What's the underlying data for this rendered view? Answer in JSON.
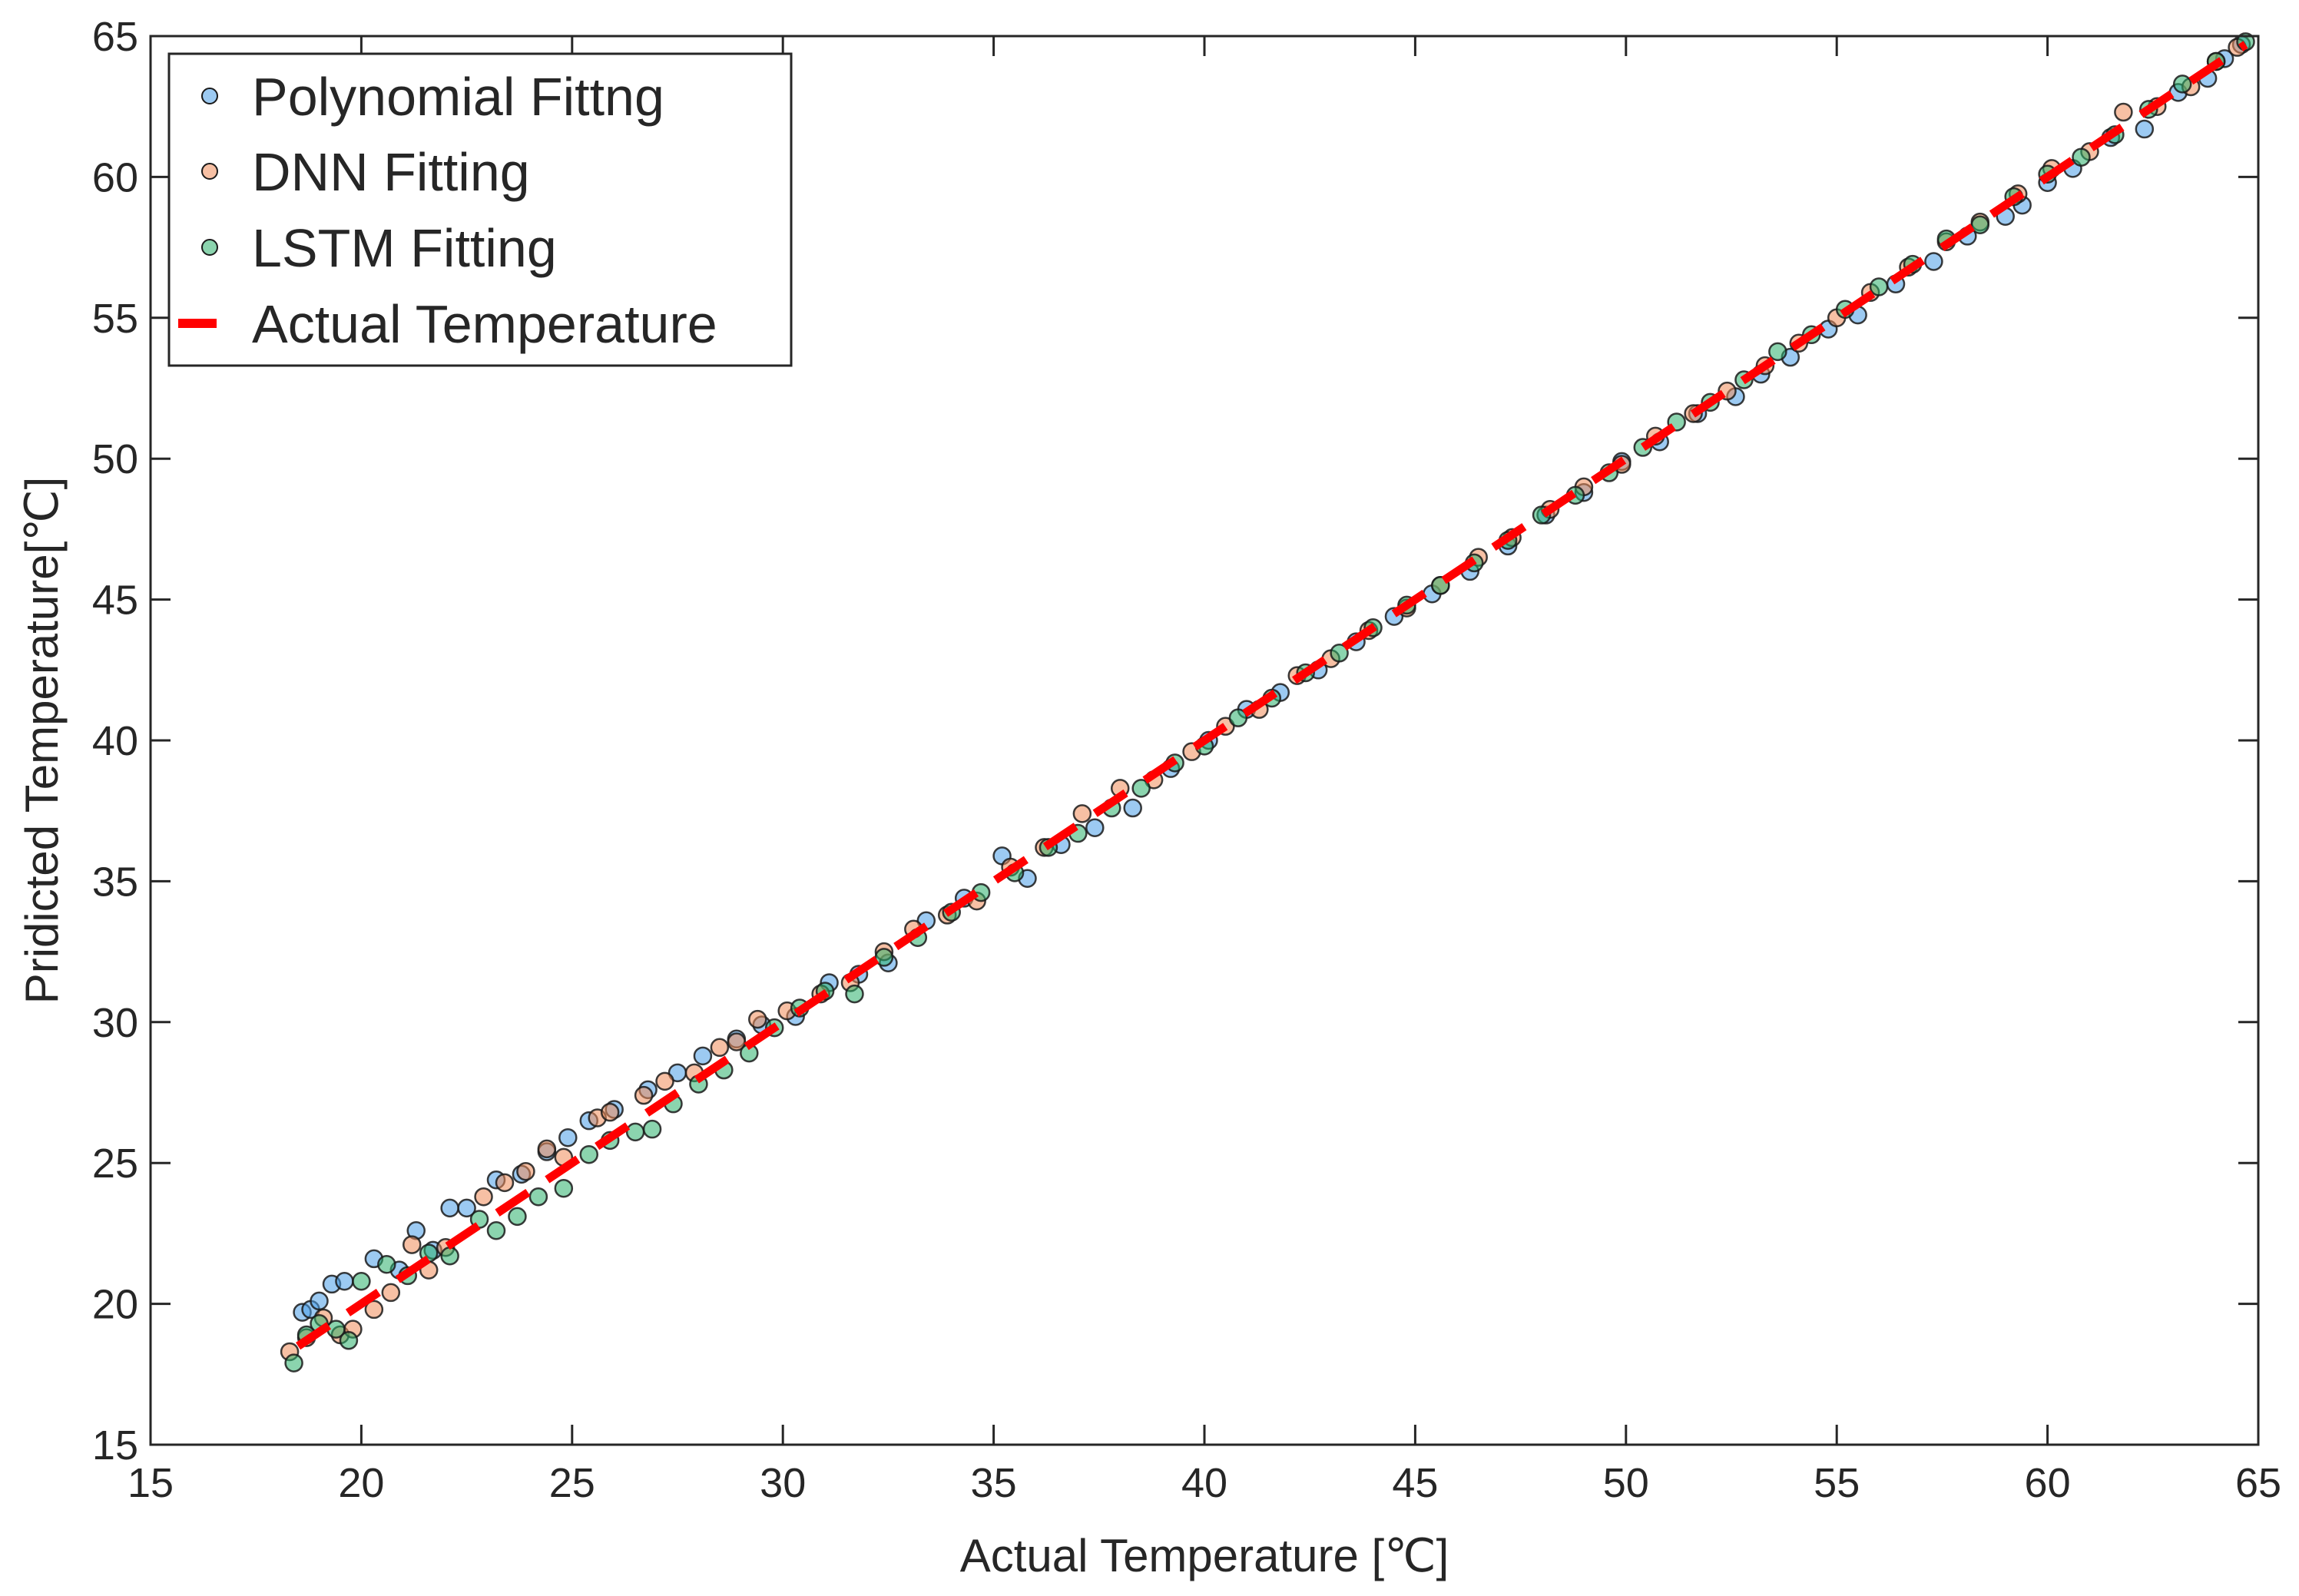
{
  "chart_data": {
    "type": "scatter",
    "title": "",
    "xlabel": "Actual Temperature [℃]",
    "ylabel": "Pridicted Temperature[℃]",
    "xlim": [
      15,
      65
    ],
    "ylim": [
      15,
      65
    ],
    "xticks": [
      15,
      20,
      25,
      30,
      35,
      40,
      45,
      50,
      55,
      60,
      65
    ],
    "yticks": [
      15,
      20,
      25,
      30,
      35,
      40,
      45,
      50,
      55,
      60,
      65
    ],
    "grid": false,
    "legend_position": "top-left",
    "series": [
      {
        "name": "Polynomial Fittng",
        "kind": "scatter",
        "color": "#4a9fe8",
        "x": [
          18.6,
          18.8,
          19.0,
          19.3,
          19.6,
          20.3,
          20.9,
          21.3,
          21.7,
          22.1,
          22.5,
          23.2,
          23.8,
          24.4,
          24.9,
          25.4,
          26.0,
          26.8,
          27.5,
          28.1,
          28.9,
          29.5,
          30.3,
          31.1,
          31.8,
          32.5,
          33.4,
          34.3,
          35.2,
          35.8,
          36.6,
          37.4,
          38.3,
          39.2,
          40.1,
          41.0,
          41.8,
          42.7,
          43.6,
          44.5,
          45.4,
          46.3,
          47.2,
          48.1,
          49.0,
          49.9,
          50.8,
          51.7,
          52.6,
          53.2,
          53.9,
          54.8,
          55.5,
          56.4,
          57.3,
          58.1,
          59.0,
          59.4,
          60.0,
          60.6,
          61.5,
          62.3,
          63.1,
          63.8,
          64.2,
          64.6
        ],
        "y": [
          19.7,
          19.8,
          20.1,
          20.7,
          20.8,
          21.6,
          21.2,
          22.6,
          21.9,
          23.4,
          23.4,
          24.4,
          24.6,
          25.4,
          25.9,
          26.5,
          26.9,
          27.6,
          28.2,
          28.8,
          29.4,
          29.9,
          30.2,
          31.4,
          31.7,
          32.1,
          33.6,
          34.4,
          35.9,
          35.1,
          36.3,
          36.9,
          37.6,
          39.0,
          40.0,
          41.1,
          41.7,
          42.5,
          43.5,
          44.4,
          45.2,
          46.0,
          46.9,
          48.0,
          48.8,
          49.9,
          50.6,
          51.6,
          52.2,
          53.0,
          53.6,
          54.6,
          55.1,
          56.2,
          57.0,
          57.9,
          58.6,
          59.0,
          59.8,
          60.3,
          61.4,
          61.7,
          63.0,
          63.5,
          64.2,
          64.7
        ]
      },
      {
        "name": "DNN Fitting",
        "kind": "scatter",
        "color": "#f08c5a",
        "x": [
          18.3,
          18.7,
          19.1,
          19.5,
          19.8,
          20.3,
          20.7,
          21.2,
          21.6,
          22.0,
          22.9,
          23.4,
          23.9,
          24.4,
          24.8,
          25.6,
          25.9,
          26.7,
          27.2,
          27.9,
          28.5,
          28.9,
          29.4,
          30.1,
          30.9,
          31.6,
          32.4,
          33.1,
          33.9,
          34.6,
          35.4,
          36.2,
          37.1,
          38.0,
          38.8,
          39.7,
          40.5,
          41.3,
          42.2,
          43.0,
          43.9,
          44.8,
          45.6,
          46.5,
          47.3,
          48.2,
          49.0,
          49.9,
          50.7,
          51.6,
          52.4,
          53.3,
          54.1,
          55.0,
          55.8,
          56.7,
          57.6,
          58.4,
          59.3,
          60.1,
          61.0,
          61.8,
          62.6,
          63.4,
          64.0,
          64.5
        ],
        "y": [
          18.3,
          18.8,
          19.5,
          18.9,
          19.1,
          19.8,
          20.4,
          22.1,
          21.2,
          22.0,
          23.8,
          24.3,
          24.7,
          25.5,
          25.2,
          26.6,
          26.8,
          27.4,
          27.9,
          28.2,
          29.1,
          29.3,
          30.1,
          30.4,
          31.0,
          31.4,
          32.5,
          33.3,
          33.8,
          34.3,
          35.5,
          36.2,
          37.4,
          38.3,
          38.6,
          39.6,
          40.5,
          41.1,
          42.3,
          42.9,
          43.9,
          44.7,
          45.5,
          46.5,
          47.2,
          48.2,
          49.0,
          49.8,
          50.8,
          51.6,
          52.4,
          53.3,
          54.1,
          55.0,
          55.9,
          56.8,
          57.7,
          58.4,
          59.4,
          60.3,
          60.9,
          62.3,
          62.5,
          63.2,
          64.1,
          64.6
        ]
      },
      {
        "name": "LSTM Fitting",
        "kind": "scatter",
        "color": "#2bb06c",
        "x": [
          18.4,
          18.7,
          19.0,
          19.4,
          19.7,
          20.0,
          20.6,
          21.1,
          21.6,
          22.1,
          22.8,
          23.2,
          23.7,
          24.2,
          24.8,
          25.4,
          25.9,
          26.5,
          26.9,
          27.4,
          28.0,
          28.6,
          29.2,
          29.8,
          30.4,
          31.0,
          31.7,
          32.4,
          33.2,
          34.0,
          34.7,
          35.5,
          36.3,
          37.0,
          37.8,
          38.5,
          39.3,
          40.0,
          40.8,
          41.6,
          42.4,
          43.2,
          44.0,
          44.8,
          45.6,
          46.4,
          47.2,
          48.0,
          48.8,
          49.6,
          50.4,
          51.2,
          52.0,
          52.8,
          53.6,
          54.4,
          55.2,
          56.0,
          56.8,
          57.6,
          58.4,
          59.2,
          60.0,
          60.8,
          61.6,
          62.4,
          63.2,
          64.0,
          64.7
        ],
        "y": [
          17.9,
          18.9,
          19.3,
          19.1,
          18.7,
          20.8,
          21.4,
          21.0,
          21.8,
          21.7,
          23.0,
          22.6,
          23.1,
          23.8,
          24.1,
          25.3,
          25.8,
          26.1,
          26.2,
          27.1,
          27.8,
          28.3,
          28.9,
          29.8,
          30.5,
          31.1,
          31.0,
          32.3,
          33.0,
          33.9,
          34.6,
          35.3,
          36.2,
          36.7,
          37.6,
          38.3,
          39.2,
          39.8,
          40.8,
          41.5,
          42.4,
          43.1,
          44.0,
          44.8,
          45.5,
          46.3,
          47.1,
          48.0,
          48.7,
          49.5,
          50.4,
          51.3,
          52.0,
          52.8,
          53.8,
          54.4,
          55.3,
          56.1,
          56.9,
          57.8,
          58.3,
          59.3,
          60.1,
          60.7,
          61.5,
          62.4,
          63.3,
          64.1,
          64.8
        ]
      },
      {
        "name": "Actual Temperature",
        "kind": "line",
        "style": "dashed",
        "color": "#ff0000",
        "x": [
          18.5,
          64.7
        ],
        "y": [
          18.5,
          64.7
        ]
      }
    ]
  }
}
